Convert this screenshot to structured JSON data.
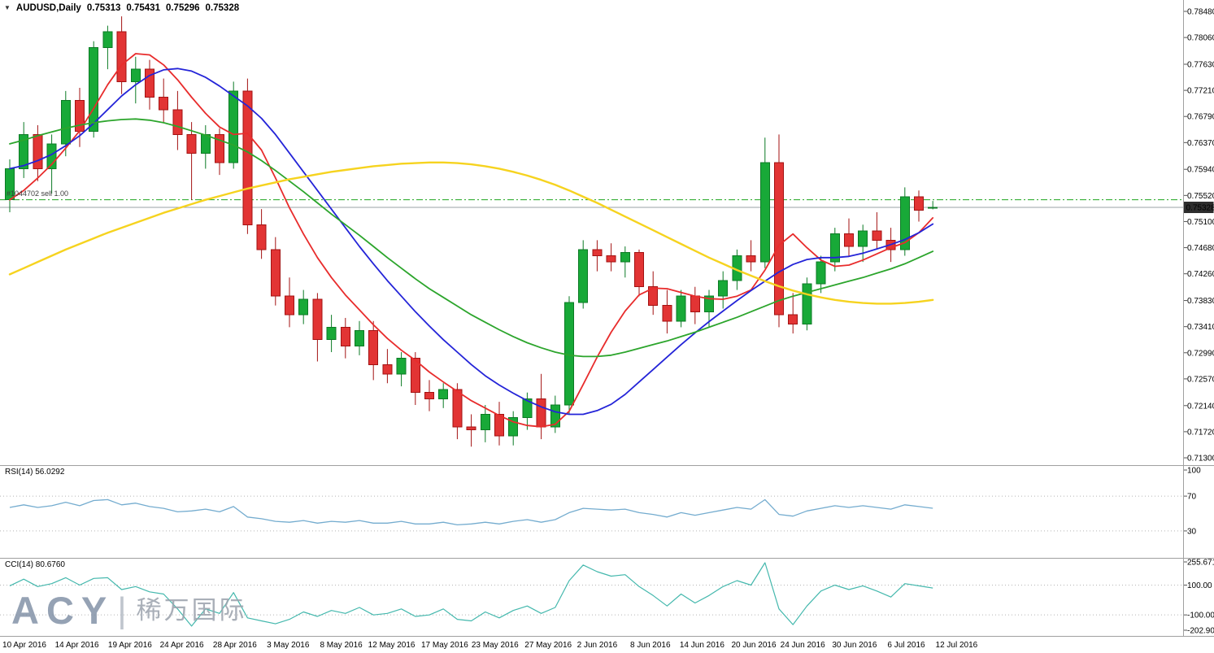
{
  "window": {
    "symbol": "AUDUSD,Daily",
    "ohlc": {
      "open": "0.75313",
      "high": "0.75431",
      "low": "0.75296",
      "close": "0.75328"
    }
  },
  "order_line": {
    "label": "#1044702 sell 1.00",
    "price": 0.7545
  },
  "bid_line": {
    "price": 0.75328,
    "tag": "0.75328"
  },
  "indicators": {
    "rsi": {
      "label": "RSI(14)",
      "value": "56.0292",
      "levels": [
        70,
        30
      ],
      "color": "#74accf"
    },
    "cci": {
      "label": "CCI(14)",
      "value": "80.6760",
      "levels": [
        100,
        -100
      ],
      "color": "#44b8ad"
    }
  },
  "watermark": {
    "brand": "ACY",
    "divider": "|",
    "cjk": "稀万国际"
  },
  "colors": {
    "background": "#ffffff",
    "text": "#000000",
    "separator": "#a0a0a0",
    "up_fill": "#18a938",
    "up_edge": "#0b7a24",
    "down_fill": "#e23434",
    "down_edge": "#a31212",
    "order_line": "#1fa51f",
    "bid_line": "#9aa0a6",
    "price_tag_bg": "#2d2d2d",
    "price_tag_text": "#ffffff",
    "level_dotted": "#b5b5b5"
  },
  "chart_data": {
    "type": "candlestick",
    "symbol": "AUDUSD",
    "timeframe": "Daily",
    "candle_format": "[open, high, low, close]",
    "candles": [
      [
        0.7545,
        0.761,
        0.7525,
        0.7595
      ],
      [
        0.7595,
        0.767,
        0.758,
        0.765
      ],
      [
        0.765,
        0.7665,
        0.7575,
        0.7595
      ],
      [
        0.7595,
        0.765,
        0.7555,
        0.7635
      ],
      [
        0.7635,
        0.772,
        0.7615,
        0.7705
      ],
      [
        0.7705,
        0.7725,
        0.763,
        0.7655
      ],
      [
        0.7655,
        0.78,
        0.7645,
        0.779
      ],
      [
        0.779,
        0.7825,
        0.7755,
        0.7815
      ],
      [
        0.7815,
        0.784,
        0.7715,
        0.7735
      ],
      [
        0.7735,
        0.7775,
        0.77,
        0.7755
      ],
      [
        0.7755,
        0.777,
        0.769,
        0.771
      ],
      [
        0.771,
        0.774,
        0.767,
        0.769
      ],
      [
        0.769,
        0.772,
        0.7625,
        0.765
      ],
      [
        0.765,
        0.767,
        0.7545,
        0.762
      ],
      [
        0.762,
        0.7665,
        0.7595,
        0.765
      ],
      [
        0.765,
        0.766,
        0.7585,
        0.7605
      ],
      [
        0.7605,
        0.7735,
        0.7595,
        0.772
      ],
      [
        0.772,
        0.774,
        0.749,
        0.7505
      ],
      [
        0.7505,
        0.753,
        0.745,
        0.7465
      ],
      [
        0.7465,
        0.7485,
        0.7375,
        0.739
      ],
      [
        0.739,
        0.742,
        0.734,
        0.736
      ],
      [
        0.736,
        0.74,
        0.7345,
        0.7385
      ],
      [
        0.7385,
        0.7395,
        0.7285,
        0.732
      ],
      [
        0.732,
        0.736,
        0.73,
        0.734
      ],
      [
        0.734,
        0.7355,
        0.729,
        0.731
      ],
      [
        0.731,
        0.735,
        0.7295,
        0.7335
      ],
      [
        0.7335,
        0.735,
        0.7255,
        0.728
      ],
      [
        0.728,
        0.7305,
        0.725,
        0.7265
      ],
      [
        0.7265,
        0.73,
        0.7245,
        0.729
      ],
      [
        0.729,
        0.73,
        0.7215,
        0.7235
      ],
      [
        0.7235,
        0.7255,
        0.7205,
        0.7225
      ],
      [
        0.7225,
        0.725,
        0.721,
        0.724
      ],
      [
        0.724,
        0.725,
        0.716,
        0.718
      ],
      [
        0.718,
        0.72,
        0.7148,
        0.7175
      ],
      [
        0.7175,
        0.7215,
        0.7155,
        0.72
      ],
      [
        0.72,
        0.722,
        0.715,
        0.7165
      ],
      [
        0.7165,
        0.7205,
        0.715,
        0.7195
      ],
      [
        0.7195,
        0.7235,
        0.7175,
        0.7225
      ],
      [
        0.7225,
        0.7265,
        0.716,
        0.718
      ],
      [
        0.718,
        0.723,
        0.717,
        0.7215
      ],
      [
        0.7215,
        0.739,
        0.72,
        0.738
      ],
      [
        0.738,
        0.748,
        0.737,
        0.7465
      ],
      [
        0.7465,
        0.748,
        0.743,
        0.7455
      ],
      [
        0.7455,
        0.7475,
        0.743,
        0.7445
      ],
      [
        0.7445,
        0.747,
        0.742,
        0.746
      ],
      [
        0.746,
        0.7465,
        0.739,
        0.7405
      ],
      [
        0.7405,
        0.743,
        0.736,
        0.7375
      ],
      [
        0.7375,
        0.74,
        0.733,
        0.735
      ],
      [
        0.735,
        0.74,
        0.734,
        0.739
      ],
      [
        0.739,
        0.7405,
        0.7345,
        0.7365
      ],
      [
        0.7365,
        0.74,
        0.734,
        0.739
      ],
      [
        0.739,
        0.743,
        0.737,
        0.7415
      ],
      [
        0.7415,
        0.7465,
        0.74,
        0.7455
      ],
      [
        0.7455,
        0.748,
        0.743,
        0.7445
      ],
      [
        0.7445,
        0.7645,
        0.7435,
        0.7605
      ],
      [
        0.7605,
        0.765,
        0.734,
        0.736
      ],
      [
        0.736,
        0.7395,
        0.733,
        0.7345
      ],
      [
        0.7345,
        0.742,
        0.7335,
        0.741
      ],
      [
        0.741,
        0.7455,
        0.7395,
        0.7445
      ],
      [
        0.7445,
        0.75,
        0.743,
        0.749
      ],
      [
        0.749,
        0.7515,
        0.7455,
        0.747
      ],
      [
        0.747,
        0.7505,
        0.7445,
        0.7495
      ],
      [
        0.7495,
        0.7525,
        0.7465,
        0.748
      ],
      [
        0.748,
        0.75,
        0.7445,
        0.7465
      ],
      [
        0.7465,
        0.7565,
        0.7455,
        0.755
      ],
      [
        0.755,
        0.756,
        0.751,
        0.7528
      ],
      [
        0.75313,
        0.75431,
        0.75296,
        0.75328
      ]
    ],
    "overlays": [
      {
        "name": "ma-red",
        "color": "#e82c2c",
        "width": 1.8,
        "values": [
          0.7545,
          0.756,
          0.758,
          0.7602,
          0.7628,
          0.7656,
          0.7692,
          0.773,
          0.7762,
          0.778,
          0.7778,
          0.7762,
          0.7738,
          0.771,
          0.7684,
          0.7662,
          0.765,
          0.7652,
          0.7625,
          0.758,
          0.7532,
          0.749,
          0.7452,
          0.742,
          0.7392,
          0.7368,
          0.7344,
          0.7322,
          0.7303,
          0.7287,
          0.7268,
          0.7252,
          0.7237,
          0.7222,
          0.721,
          0.7198,
          0.7188,
          0.7182,
          0.718,
          0.7184,
          0.7205,
          0.7248,
          0.7292,
          0.7332,
          0.7366,
          0.7392,
          0.7403,
          0.7402,
          0.7396,
          0.739,
          0.7386,
          0.7385,
          0.739,
          0.74,
          0.7432,
          0.7472,
          0.749,
          0.7468,
          0.7448,
          0.7438,
          0.744,
          0.7448,
          0.7458,
          0.7468,
          0.7476,
          0.7492,
          0.7516
        ]
      },
      {
        "name": "ma-blue",
        "color": "#2424d8",
        "width": 1.8,
        "values": [
          0.7595,
          0.76,
          0.7608,
          0.7618,
          0.7632,
          0.7648,
          0.7668,
          0.769,
          0.7712,
          0.773,
          0.7745,
          0.7754,
          0.7756,
          0.7752,
          0.7742,
          0.7728,
          0.7712,
          0.7696,
          0.7676,
          0.765,
          0.762,
          0.759,
          0.756,
          0.753,
          0.75,
          0.747,
          0.7442,
          0.7415,
          0.739,
          0.7365,
          0.7342,
          0.732,
          0.73,
          0.728,
          0.7262,
          0.7247,
          0.7234,
          0.7222,
          0.7212,
          0.7204,
          0.72,
          0.72,
          0.7206,
          0.7216,
          0.7232,
          0.7252,
          0.7272,
          0.7292,
          0.7312,
          0.7331,
          0.7349,
          0.7366,
          0.7383,
          0.7399,
          0.7414,
          0.7429,
          0.7441,
          0.7449,
          0.7452,
          0.7452,
          0.7454,
          0.7459,
          0.7466,
          0.7473,
          0.7481,
          0.7492,
          0.7506
        ]
      },
      {
        "name": "ma-green",
        "color": "#2ca52c",
        "width": 1.8,
        "values": [
          0.7635,
          0.7641,
          0.7648,
          0.7654,
          0.766,
          0.7665,
          0.7669,
          0.7672,
          0.7674,
          0.7675,
          0.7673,
          0.7669,
          0.7663,
          0.7656,
          0.7649,
          0.7641,
          0.7633,
          0.7622,
          0.7608,
          0.7592,
          0.7575,
          0.7558,
          0.754,
          0.7522,
          0.7505,
          0.7488,
          0.747,
          0.7452,
          0.7435,
          0.7418,
          0.7402,
          0.7388,
          0.7374,
          0.736,
          0.7348,
          0.7336,
          0.7325,
          0.7315,
          0.7307,
          0.73,
          0.7295,
          0.7293,
          0.7293,
          0.7295,
          0.73,
          0.7306,
          0.7312,
          0.7318,
          0.7325,
          0.7332,
          0.734,
          0.7348,
          0.7356,
          0.7365,
          0.7374,
          0.7383,
          0.739,
          0.7396,
          0.7402,
          0.7408,
          0.7414,
          0.742,
          0.7427,
          0.7434,
          0.7442,
          0.7452,
          0.7462
        ]
      },
      {
        "name": "ma-yellow",
        "color": "#f6d31f",
        "width": 2.4,
        "values": [
          0.7425,
          0.7435,
          0.7445,
          0.7455,
          0.7465,
          0.7474,
          0.7483,
          0.7492,
          0.75,
          0.7508,
          0.7516,
          0.7524,
          0.7531,
          0.7538,
          0.7545,
          0.7551,
          0.7557,
          0.7563,
          0.7568,
          0.7573,
          0.7578,
          0.7582,
          0.7586,
          0.759,
          0.7593,
          0.7596,
          0.7599,
          0.7601,
          0.7603,
          0.7604,
          0.7605,
          0.7605,
          0.7604,
          0.7602,
          0.7599,
          0.7595,
          0.759,
          0.7584,
          0.7577,
          0.7569,
          0.756,
          0.755,
          0.754,
          0.7529,
          0.7518,
          0.7507,
          0.7496,
          0.7485,
          0.7474,
          0.7463,
          0.7452,
          0.7442,
          0.7432,
          0.7423,
          0.7414,
          0.7406,
          0.7399,
          0.7393,
          0.7388,
          0.7384,
          0.7381,
          0.7379,
          0.7378,
          0.7378,
          0.7379,
          0.7381,
          0.7384
        ]
      }
    ],
    "price_axis": {
      "ticks": [
        "0.78480",
        "0.78060",
        "0.77630",
        "0.77210",
        "0.76790",
        "0.76370",
        "0.75940",
        "0.75520",
        "0.75100",
        "0.74680",
        "0.74260",
        "0.73830",
        "0.73410",
        "0.72990",
        "0.72570",
        "0.72140",
        "0.71720",
        "0.71300"
      ]
    },
    "date_axis": [
      {
        "label": "10 Apr 2016",
        "pos": 1.0
      },
      {
        "label": "14 Apr 2016",
        "pos": 4.8
      },
      {
        "label": "19 Apr 2016",
        "pos": 8.6
      },
      {
        "label": "24 Apr 2016",
        "pos": 12.3
      },
      {
        "label": "28 Apr 2016",
        "pos": 16.1
      },
      {
        "label": "3 May 2016",
        "pos": 19.9
      },
      {
        "label": "8 May 2016",
        "pos": 23.7
      },
      {
        "label": "12 May 2016",
        "pos": 27.3
      },
      {
        "label": "17 May 2016",
        "pos": 31.1
      },
      {
        "label": "23 May 2016",
        "pos": 34.7
      },
      {
        "label": "27 May 2016",
        "pos": 38.5
      },
      {
        "label": "2 Jun 2016",
        "pos": 42.0
      },
      {
        "label": "8 Jun 2016",
        "pos": 45.8
      },
      {
        "label": "14 Jun 2016",
        "pos": 49.5
      },
      {
        "label": "20 Jun 2016",
        "pos": 53.2
      },
      {
        "label": "24 Jun 2016",
        "pos": 56.7
      },
      {
        "label": "30 Jun 2016",
        "pos": 60.4
      },
      {
        "label": "6 Jul 2016",
        "pos": 64.1
      },
      {
        "label": "12 Jul 2016",
        "pos": 67.7
      }
    ],
    "rsi": {
      "ticks": [
        "100",
        "70",
        "30"
      ],
      "values": [
        57,
        60,
        57,
        59,
        63,
        59,
        65,
        66,
        60,
        62,
        58,
        56,
        52,
        53,
        55,
        52,
        58,
        46,
        44,
        41,
        40,
        42,
        39,
        41,
        40,
        42,
        39,
        39,
        41,
        38,
        38,
        40,
        37,
        38,
        40,
        38,
        41,
        43,
        40,
        43,
        51,
        56,
        55,
        54,
        55,
        51,
        49,
        46,
        51,
        48,
        51,
        54,
        57,
        55,
        66,
        49,
        47,
        53,
        56,
        59,
        57,
        59,
        57,
        55,
        60,
        58,
        56.03
      ]
    },
    "cci": {
      "ticks": [
        "255.6713",
        "100.00",
        "-100.00",
        "-202.905"
      ],
      "values": [
        95,
        140,
        90,
        110,
        150,
        100,
        145,
        150,
        70,
        90,
        55,
        40,
        -60,
        -175,
        -60,
        -90,
        50,
        -120,
        -140,
        -160,
        -130,
        -80,
        -110,
        -70,
        -90,
        -50,
        -100,
        -90,
        -60,
        -110,
        -100,
        -60,
        -130,
        -140,
        -80,
        -120,
        -70,
        -40,
        -90,
        -50,
        130,
        235,
        190,
        160,
        170,
        90,
        30,
        -40,
        40,
        -20,
        30,
        90,
        130,
        100,
        250,
        -60,
        -165,
        -40,
        60,
        100,
        70,
        95,
        60,
        20,
        110,
        95,
        80.68
      ]
    }
  }
}
